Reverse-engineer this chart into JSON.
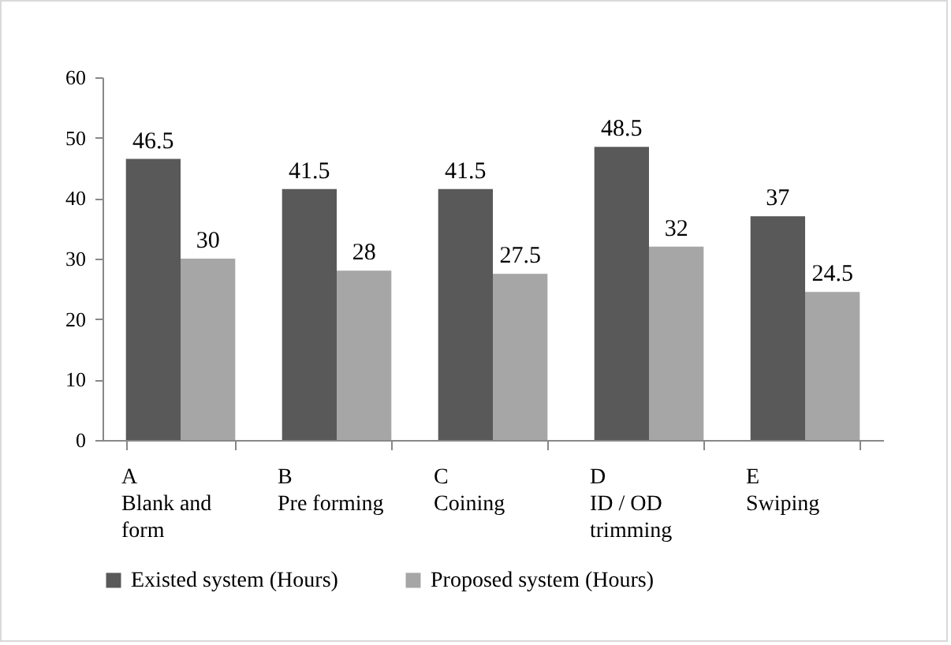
{
  "chart_data": {
    "type": "bar",
    "categories": [
      "A Blank and form",
      "B Pre forming",
      "C Coining",
      "D ID / OD trimming",
      "E Swiping"
    ],
    "series": [
      {
        "name": "Existed system (Hours)",
        "color": "#595959",
        "values": [
          46.5,
          41.5,
          41.5,
          48.5,
          37
        ]
      },
      {
        "name": "Proposed system (Hours)",
        "color": "#a6a6a6",
        "values": [
          30,
          28,
          27.5,
          32,
          24.5
        ]
      }
    ],
    "ylim": [
      0,
      60
    ],
    "yticks": [
      0,
      10,
      20,
      30,
      40,
      50,
      60
    ],
    "data_labels": true,
    "legend": "bottom"
  }
}
